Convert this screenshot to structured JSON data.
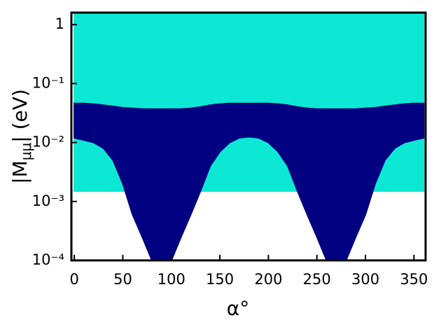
{
  "chart_data": {
    "type": "band",
    "log_y": true,
    "xlabel": "α°",
    "ylabel": [
      "|M",
      "μμ",
      "| (eV)"
    ],
    "x": [
      0,
      10,
      20,
      30,
      40,
      50,
      60,
      70,
      80,
      90,
      100,
      110,
      120,
      130,
      140,
      150,
      160,
      170,
      180,
      190,
      200,
      210,
      220,
      230,
      240,
      250,
      260,
      270,
      280,
      290,
      300,
      310,
      320,
      330,
      340,
      350,
      360
    ],
    "series": [
      {
        "color": "#0de8d4",
        "upper": [
          1.6,
          1.6,
          1.6,
          1.6,
          1.6,
          1.6,
          1.6,
          1.6,
          1.6,
          1.6,
          1.6,
          1.6,
          1.6,
          1.6,
          1.6,
          1.6,
          1.6,
          1.6,
          1.6,
          1.6,
          1.6,
          1.6,
          1.6,
          1.6,
          1.6,
          1.6,
          1.6,
          1.6,
          1.6,
          1.6,
          1.6,
          1.6,
          1.6,
          1.6,
          1.6,
          1.6,
          1.6
        ],
        "lower": [
          0.0015,
          0.0015,
          0.0015,
          0.0015,
          0.0015,
          0.0015,
          0.0015,
          0.0015,
          0.0015,
          0.0015,
          0.0015,
          0.0015,
          0.0015,
          0.0015,
          0.0015,
          0.0015,
          0.0015,
          0.0015,
          0.0015,
          0.0015,
          0.0015,
          0.0015,
          0.0015,
          0.0015,
          0.0015,
          0.0015,
          0.0015,
          0.0015,
          0.0015,
          0.0015,
          0.0015,
          0.0015,
          0.0015,
          0.0015,
          0.0015,
          0.0015,
          0.0015
        ]
      },
      {
        "color": "#000080",
        "upper": [
          0.046,
          0.046,
          0.045,
          0.043,
          0.041,
          0.039,
          0.038,
          0.037,
          0.037,
          0.037,
          0.037,
          0.037,
          0.038,
          0.04,
          0.043,
          0.045,
          0.046,
          0.046,
          0.046,
          0.046,
          0.046,
          0.045,
          0.043,
          0.04,
          0.038,
          0.037,
          0.037,
          0.037,
          0.037,
          0.037,
          0.038,
          0.039,
          0.041,
          0.043,
          0.045,
          0.046,
          0.046
        ],
        "lower": [
          0.012,
          0.011,
          0.01,
          0.008,
          0.005,
          0.002,
          0.0006,
          0.00025,
          0.0001,
          0.0001,
          0.0001,
          0.00025,
          0.0006,
          0.0015,
          0.004,
          0.007,
          0.01,
          0.012,
          0.0125,
          0.012,
          0.01,
          0.007,
          0.004,
          0.0015,
          0.0006,
          0.00025,
          0.0001,
          0.0001,
          0.0001,
          0.00025,
          0.0006,
          0.002,
          0.005,
          0.008,
          0.01,
          0.011,
          0.012
        ]
      }
    ],
    "xlim": [
      -3,
      362
    ],
    "xticks": [
      0,
      50,
      100,
      150,
      200,
      250,
      300,
      350
    ],
    "ylim": [
      0.0001,
      1.6
    ],
    "yticks": [
      {
        "value": 0.0001,
        "label": "10⁻⁴"
      },
      {
        "value": 0.001,
        "label": "10⁻³"
      },
      {
        "value": 0.01,
        "label": "10⁻²"
      },
      {
        "value": 0.1,
        "label": "10⁻¹"
      },
      1
    ]
  }
}
